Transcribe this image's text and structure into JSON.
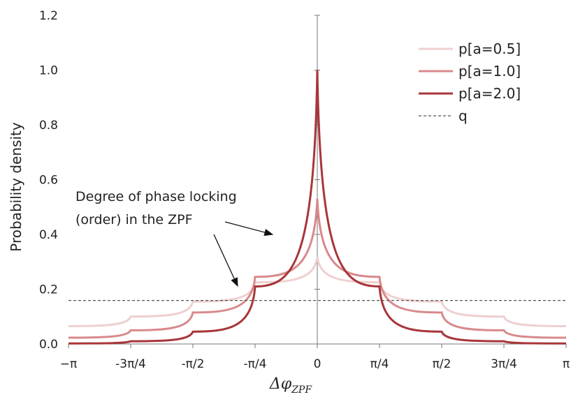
{
  "chart_data": {
    "type": "line",
    "title": "",
    "xlabel": "Δφ",
    "xlabel_subscript": "ZPF",
    "ylabel": "Probability density",
    "xlim": [
      -3.14159,
      3.14159
    ],
    "ylim": [
      0,
      1.2
    ],
    "x_ticks": [
      {
        "value": -3.14159,
        "label": "−π"
      },
      {
        "value": -2.35619,
        "label": "-3π/4"
      },
      {
        "value": -1.5708,
        "label": "-π/2"
      },
      {
        "value": -0.7854,
        "label": "-π/4"
      },
      {
        "value": 0,
        "label": "0"
      },
      {
        "value": 0.7854,
        "label": "π/4"
      },
      {
        "value": 1.5708,
        "label": "π/2"
      },
      {
        "value": 2.35619,
        "label": "3π/4"
      },
      {
        "value": 3.14159,
        "label": "π"
      }
    ],
    "y_ticks": [
      {
        "value": 0,
        "label": "0.0"
      },
      {
        "value": 0.2,
        "label": "0.2"
      },
      {
        "value": 0.4,
        "label": "0.4"
      },
      {
        "value": 0.6,
        "label": "0.6"
      },
      {
        "value": 0.8,
        "label": "0.8"
      },
      {
        "value": 1.0,
        "label": "1.0"
      },
      {
        "value": 1.2,
        "label": "1.2"
      }
    ],
    "grid": false,
    "legend_position": "top-right",
    "series": [
      {
        "name": "p[a=0.5]",
        "color": "#f0cfcf",
        "style": "solid",
        "x": [
          -3.14159,
          -2.35619,
          -1.5708,
          -0.7854,
          0,
          0.7854,
          1.5708,
          2.35619,
          3.14159
        ],
        "y": [
          0.065,
          0.1,
          0.155,
          0.225,
          0.318,
          0.225,
          0.155,
          0.1,
          0.065
        ]
      },
      {
        "name": "p[a=1.0]",
        "color": "#d9898b",
        "style": "solid",
        "x": [
          -3.14159,
          -2.35619,
          -1.5708,
          -0.7854,
          0,
          0.7854,
          1.5708,
          2.35619,
          3.14159
        ],
        "y": [
          0.023,
          0.05,
          0.115,
          0.245,
          0.53,
          0.245,
          0.115,
          0.05,
          0.023
        ]
      },
      {
        "name": "p[a=2.0]",
        "color": "#a8363a",
        "style": "solid",
        "x": [
          -3.14159,
          -2.35619,
          -1.5708,
          -0.7854,
          0,
          0.7854,
          1.5708,
          2.35619,
          3.14159
        ],
        "y": [
          0.002,
          0.01,
          0.045,
          0.21,
          1.0,
          0.21,
          0.045,
          0.01,
          0.002
        ]
      },
      {
        "name": "q",
        "color": "#555555",
        "style": "dashed",
        "x": [
          -3.14159,
          3.14159
        ],
        "y": [
          0.159,
          0.159
        ]
      }
    ],
    "annotations": [
      {
        "text_lines": [
          "Degree of phase locking",
          "(order) in the ZPF"
        ]
      }
    ]
  }
}
